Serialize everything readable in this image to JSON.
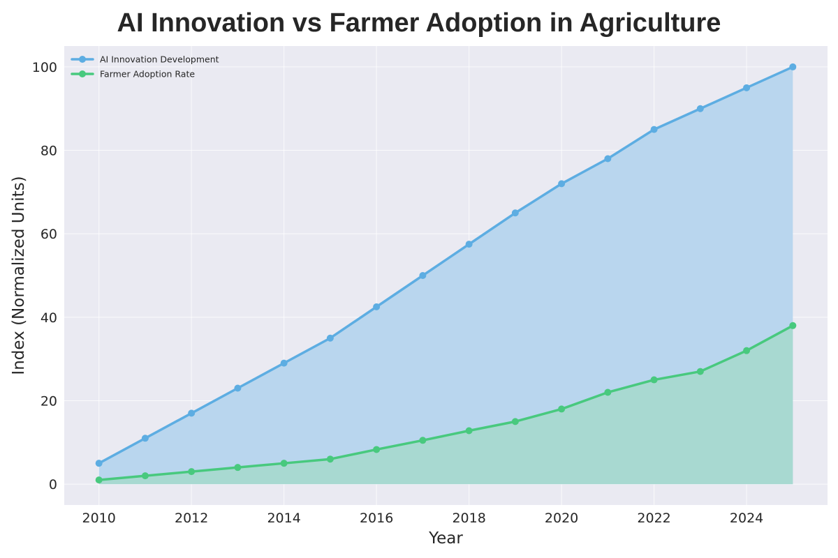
{
  "chart_data": {
    "type": "area",
    "title": "AI Innovation vs Farmer Adoption in Agriculture",
    "xlabel": "Year",
    "ylabel": "Index (Normalized Units)",
    "x": [
      2010,
      2011,
      2012,
      2013,
      2014,
      2015,
      2016,
      2017,
      2018,
      2019,
      2020,
      2021,
      2022,
      2023,
      2024,
      2025
    ],
    "xlim": [
      2009.25,
      2025.75
    ],
    "ylim": [
      -5,
      105
    ],
    "xticks": [
      2010,
      2012,
      2014,
      2016,
      2018,
      2020,
      2022,
      2024
    ],
    "yticks": [
      0,
      20,
      40,
      60,
      80,
      100
    ],
    "grid": true,
    "legend_position": "top-left",
    "series": [
      {
        "name": "AI Innovation Development",
        "color": "#5DADE2",
        "fill_color": "#B9D6EE",
        "values": [
          5,
          11,
          17,
          23,
          29,
          35,
          42.5,
          50,
          57.5,
          65,
          72,
          78,
          85,
          90,
          95,
          100
        ]
      },
      {
        "name": "Farmer Adoption Rate",
        "color": "#48C97E",
        "fill_color": "#A3D9C7",
        "values": [
          1,
          2,
          3,
          4,
          5,
          6,
          8.3,
          10.5,
          12.8,
          15,
          18,
          22,
          25,
          27,
          32,
          38
        ]
      }
    ]
  }
}
